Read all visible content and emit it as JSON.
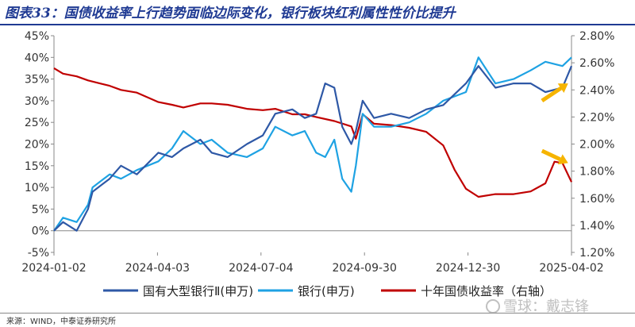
{
  "title": "图表33：国债收益率上行趋势面临边际变化，银行板块红利属性性价比提升",
  "source": "来源：WIND，中泰证券研究所",
  "watermark": "雪球：戴志锋",
  "colors": {
    "title": "#1f3a93",
    "series_big_banks": "#2e58a6",
    "series_banks": "#1ea2e3",
    "series_yield": "#c00000",
    "arrow": "#f6b400"
  },
  "chart_data": {
    "type": "line",
    "x_ticks": [
      "2024-01-02",
      "2024-04-03",
      "2024-07-04",
      "2024-09-30",
      "2024-12-30",
      "2025-04-02"
    ],
    "y_left": {
      "ticks": [
        "-5%",
        "0%",
        "5%",
        "10%",
        "15%",
        "20%",
        "25%",
        "30%",
        "35%",
        "40%",
        "45%"
      ],
      "range": [
        -5,
        45
      ],
      "unit": "%"
    },
    "y_right": {
      "ticks": [
        "1.20%",
        "1.40%",
        "1.60%",
        "1.80%",
        "2.00%",
        "2.20%",
        "2.40%",
        "2.60%",
        "2.80%"
      ],
      "range": [
        1.2,
        2.8
      ],
      "unit": "%"
    },
    "series": [
      {
        "name": "国有大型银行Ⅱ(申万)",
        "axis": "left",
        "x": [
          "2024-01-02",
          "2024-01-10",
          "2024-01-22",
          "2024-02-01",
          "2024-02-05",
          "2024-02-20",
          "2024-03-01",
          "2024-03-15",
          "2024-04-03",
          "2024-04-15",
          "2024-04-25",
          "2024-05-10",
          "2024-05-20",
          "2024-06-03",
          "2024-06-20",
          "2024-07-04",
          "2024-07-15",
          "2024-07-30",
          "2024-08-10",
          "2024-08-20",
          "2024-08-28",
          "2024-09-05",
          "2024-09-12",
          "2024-09-20",
          "2024-09-24",
          "2024-09-30",
          "2024-10-10",
          "2024-10-25",
          "2024-11-10",
          "2024-11-25",
          "2024-12-10",
          "2024-12-30",
          "2025-01-10",
          "2025-01-25",
          "2025-02-10",
          "2025-02-25",
          "2025-03-10",
          "2025-03-25",
          "2025-04-02"
        ],
        "values": [
          0,
          2,
          0,
          5,
          9,
          12,
          15,
          13,
          18,
          17,
          19,
          21,
          18,
          17,
          20,
          22,
          27,
          28,
          26,
          27,
          34,
          33,
          24,
          20,
          23,
          30,
          26,
          27,
          26,
          28,
          29,
          34,
          38,
          33,
          34,
          34,
          32,
          33,
          38
        ]
      },
      {
        "name": "银行(申万)",
        "axis": "left",
        "x": [
          "2024-01-02",
          "2024-01-10",
          "2024-01-22",
          "2024-02-01",
          "2024-02-05",
          "2024-02-20",
          "2024-03-01",
          "2024-03-15",
          "2024-04-03",
          "2024-04-15",
          "2024-04-25",
          "2024-05-10",
          "2024-05-20",
          "2024-06-03",
          "2024-06-20",
          "2024-07-04",
          "2024-07-15",
          "2024-07-30",
          "2024-08-10",
          "2024-08-20",
          "2024-08-28",
          "2024-09-05",
          "2024-09-12",
          "2024-09-20",
          "2024-09-24",
          "2024-09-30",
          "2024-10-10",
          "2024-10-25",
          "2024-11-10",
          "2024-11-25",
          "2024-12-10",
          "2024-12-30",
          "2025-01-10",
          "2025-01-25",
          "2025-02-10",
          "2025-02-25",
          "2025-03-10",
          "2025-03-25",
          "2025-04-02"
        ],
        "values": [
          0,
          3,
          2,
          6,
          10,
          13,
          12,
          14,
          16,
          19,
          23,
          20,
          21,
          18,
          17,
          19,
          24,
          22,
          23,
          18,
          17,
          21,
          12,
          9,
          15,
          27,
          24,
          24,
          25,
          27,
          30,
          32,
          40,
          34,
          35,
          37,
          39,
          38,
          40
        ]
      },
      {
        "name": "十年国债收益率（右轴）",
        "axis": "right",
        "x": [
          "2024-01-02",
          "2024-01-10",
          "2024-01-22",
          "2024-02-01",
          "2024-02-20",
          "2024-03-01",
          "2024-03-15",
          "2024-04-03",
          "2024-04-15",
          "2024-04-25",
          "2024-05-10",
          "2024-05-20",
          "2024-06-03",
          "2024-06-20",
          "2024-07-04",
          "2024-07-15",
          "2024-07-30",
          "2024-08-10",
          "2024-08-20",
          "2024-09-05",
          "2024-09-20",
          "2024-09-24",
          "2024-09-30",
          "2024-10-10",
          "2024-10-25",
          "2024-11-10",
          "2024-11-25",
          "2024-12-10",
          "2024-12-20",
          "2024-12-30",
          "2025-01-10",
          "2025-01-25",
          "2025-02-10",
          "2025-02-25",
          "2025-03-10",
          "2025-03-18",
          "2025-03-25",
          "2025-04-02"
        ],
        "values": [
          2.56,
          2.52,
          2.5,
          2.47,
          2.43,
          2.4,
          2.38,
          2.31,
          2.29,
          2.27,
          2.3,
          2.3,
          2.29,
          2.26,
          2.25,
          2.26,
          2.22,
          2.22,
          2.2,
          2.17,
          2.13,
          2.04,
          2.22,
          2.15,
          2.14,
          2.12,
          2.09,
          1.99,
          1.81,
          1.67,
          1.61,
          1.63,
          1.63,
          1.65,
          1.71,
          1.87,
          1.86,
          1.72
        ]
      }
    ],
    "legend_position": "bottom",
    "grid": false,
    "annotations": [
      {
        "type": "arrow",
        "axis": "left",
        "from": [
          "2025-03-07",
          30
        ],
        "to": [
          "2025-03-30",
          34
        ]
      },
      {
        "type": "arrow",
        "axis": "right",
        "from": [
          "2025-03-07",
          1.95
        ],
        "to": [
          "2025-03-30",
          1.86
        ]
      }
    ]
  }
}
